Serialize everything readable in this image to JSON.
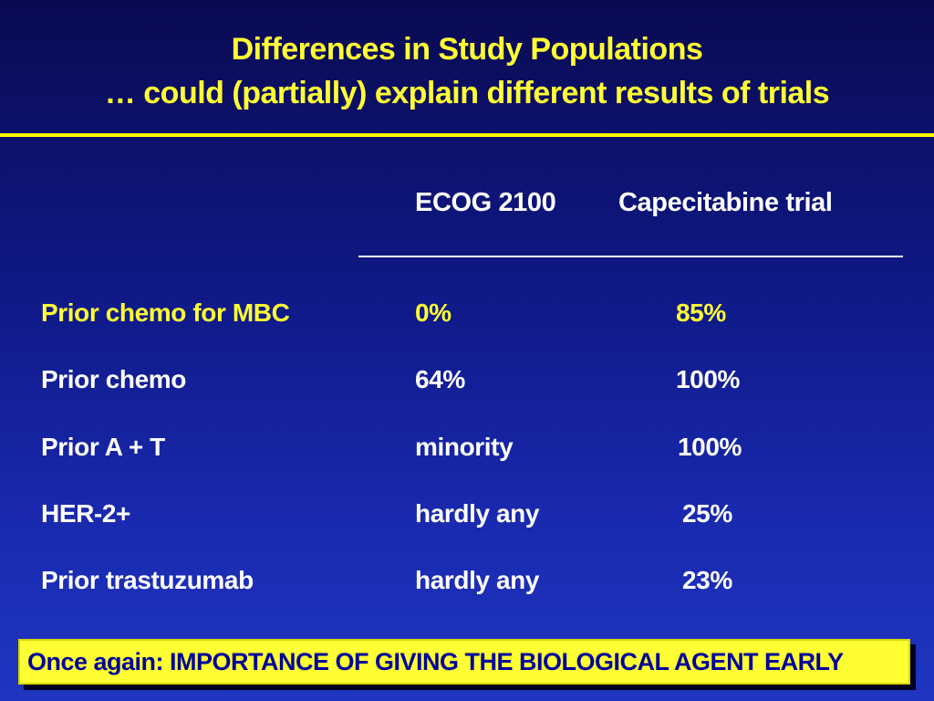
{
  "slide": {
    "title_line1": "Differences in Study Populations",
    "title_line2": "… could (partially) explain different results of trials"
  },
  "table": {
    "columns": [
      "ECOG 2100",
      "Capecitabine trial"
    ],
    "rows": [
      {
        "label": "Prior chemo for MBC",
        "ecog": "0%",
        "cape": "85%",
        "highlighted": true
      },
      {
        "label": "Prior chemo",
        "ecog": "64%",
        "cape": "100%",
        "highlighted": false
      },
      {
        "label": "Prior A + T",
        "ecog": "minority",
        "cape": "100%",
        "highlighted": false
      },
      {
        "label": "HER-2+",
        "ecog": "hardly any",
        "cape": "25%",
        "highlighted": false
      },
      {
        "label": "Prior trastuzumab",
        "ecog": "hardly any",
        "cape": "23%",
        "highlighted": false
      }
    ]
  },
  "footer": {
    "prefix": "Once again: ",
    "emphasis": "IMPORTANCE OF GIVING THE BIOLOGICAL AGENT EARLY"
  },
  "colors": {
    "background_top": "#0a0a52",
    "background_bottom": "#1f35c0",
    "title": "#ffff33",
    "highlight_row": "#ffff33",
    "body_text": "#ffffff",
    "footer_bg": "#ffff33",
    "footer_text": "#000099"
  }
}
